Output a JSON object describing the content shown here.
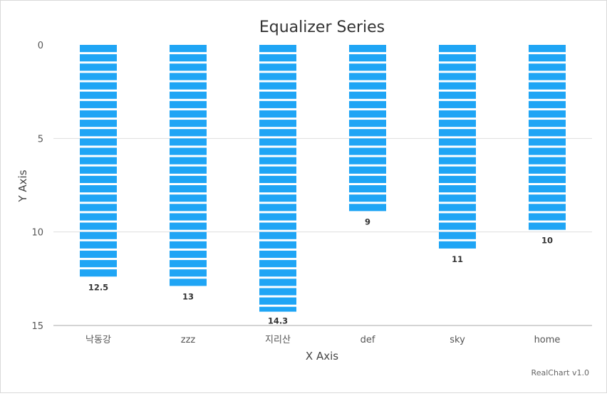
{
  "chart_data": {
    "type": "bar",
    "style": "equalizer",
    "title": "Equalizer Series",
    "xlabel": "X Axis",
    "ylabel": "Y Axis",
    "ylim": [
      0,
      15
    ],
    "y_reversed": true,
    "y_ticks": [
      0,
      5,
      10,
      15
    ],
    "grid": true,
    "categories": [
      "낙동강",
      "zzz",
      "지리산",
      "def",
      "sky",
      "home"
    ],
    "values": [
      12.5,
      13,
      14.3,
      9,
      11,
      10
    ],
    "data_labels": [
      "12.5",
      "13",
      "14.3",
      "9",
      "11",
      "10"
    ],
    "segment_size": 0.5,
    "colors": {
      "bar": "#1fa5f5",
      "grid": "#dedede",
      "axis": "#aaaaaa"
    }
  },
  "credit": "RealChart v1.0"
}
